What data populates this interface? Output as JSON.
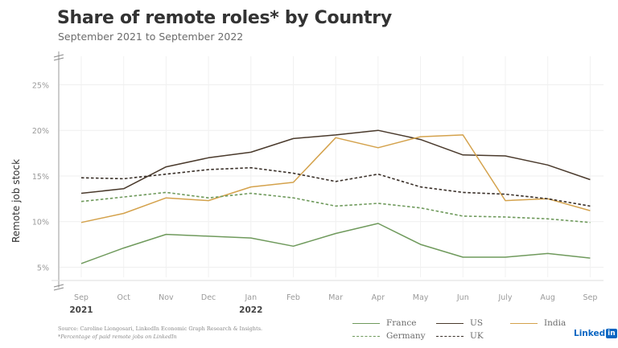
{
  "chart_data": {
    "type": "line",
    "title": "Share of remote roles* by Country",
    "subtitle": "September 2021 to September 2022",
    "xlabel": "",
    "ylabel": "Remote job stock",
    "categories": [
      "Sep",
      "Oct",
      "Nov",
      "Dec",
      "Jan",
      "Feb",
      "Mar",
      "Apr",
      "May",
      "Jun",
      "July",
      "Aug",
      "Sep"
    ],
    "year_labels": [
      {
        "index": 0,
        "label": "2021"
      },
      {
        "index": 4,
        "label": "2022"
      }
    ],
    "yticks": [
      5,
      10,
      15,
      20,
      25
    ],
    "ytick_labels": [
      "5%",
      "10%",
      "15%",
      "20%",
      "25%"
    ],
    "ylim": [
      3,
      28
    ],
    "grid": true,
    "legend_position": "bottom-right",
    "series": [
      {
        "name": "France",
        "style": "solid",
        "color": "#6f9a5c",
        "values": [
          5.4,
          7.1,
          8.6,
          8.4,
          8.2,
          7.3,
          8.7,
          9.8,
          7.5,
          6.1,
          6.1,
          6.5,
          6.0
        ]
      },
      {
        "name": "US",
        "style": "solid",
        "color": "#4a3a2c",
        "values": [
          13.1,
          13.6,
          16.0,
          17.0,
          17.6,
          19.1,
          19.5,
          20.0,
          19.0,
          17.3,
          17.2,
          16.2,
          14.6
        ]
      },
      {
        "name": "India",
        "style": "solid",
        "color": "#d4a24c",
        "values": [
          9.9,
          10.9,
          12.6,
          12.3,
          13.8,
          14.3,
          19.2,
          18.1,
          19.3,
          19.5,
          12.3,
          12.5,
          11.2
        ]
      },
      {
        "name": "Germany",
        "style": "dashed",
        "color": "#6f9a5c",
        "values": [
          12.2,
          12.7,
          13.2,
          12.6,
          13.1,
          12.6,
          11.7,
          12.0,
          11.5,
          10.6,
          10.5,
          10.3,
          9.9
        ]
      },
      {
        "name": "UK",
        "style": "dashed",
        "color": "#3a3029",
        "values": [
          14.8,
          14.7,
          15.2,
          15.7,
          15.9,
          15.3,
          14.4,
          15.2,
          13.8,
          13.2,
          13.0,
          12.5,
          11.7
        ]
      }
    ]
  },
  "footer": {
    "source": "Source: Caroline Liongosari, LinkedIn Economic Graph Research & Insights.",
    "note": "*Percentage of paid remote jobs on LinkedIn"
  },
  "logo": {
    "text": "Linked",
    "badge": "in"
  }
}
